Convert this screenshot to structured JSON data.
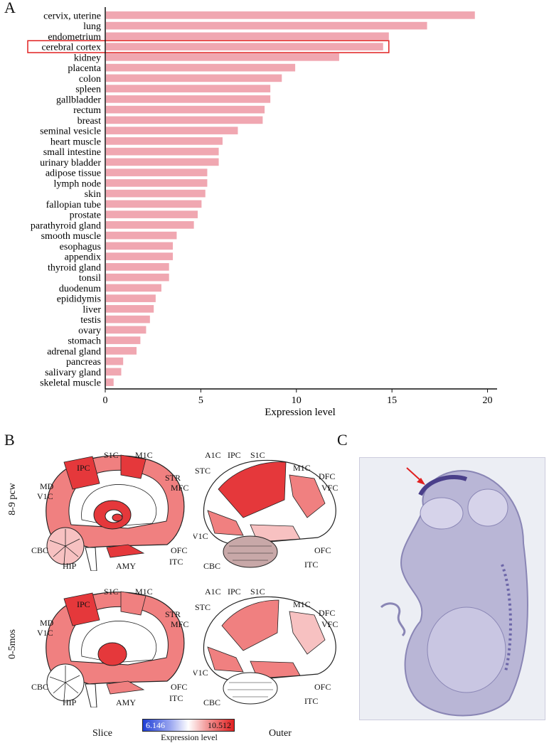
{
  "panels": {
    "a": "A",
    "b": "B",
    "c": "C"
  },
  "chart_data": {
    "type": "bar",
    "orientation": "horizontal",
    "xlabel": "Expression level",
    "xlim": [
      0,
      20.5
    ],
    "xticks": [
      0,
      5,
      10,
      15,
      20
    ],
    "highlight": "cerebral cortex",
    "bar_color": "#f0a7b1",
    "highlight_color": "#e02020",
    "categories": [
      "cervix, uterine",
      "lung",
      "endometrium",
      "cerebral cortex",
      "kidney",
      "placenta",
      "colon",
      "spleen",
      "gallbladder",
      "rectum",
      "breast",
      "seminal vesicle",
      "heart muscle",
      "small intestine",
      "urinary bladder",
      "adipose tissue",
      "lymph node",
      "skin",
      "fallopian tube",
      "prostate",
      "parathyroid gland",
      "smooth muscle",
      "esophagus",
      "appendix",
      "thyroid gland",
      "tonsil",
      "duodenum",
      "epididymis",
      "liver",
      "testis",
      "ovary",
      "stomach",
      "adrenal gland",
      "pancreas",
      "salivary gland",
      "skeletal muscle"
    ],
    "values": [
      19.3,
      16.8,
      14.8,
      14.5,
      12.2,
      9.9,
      9.2,
      8.6,
      8.6,
      8.3,
      8.2,
      6.9,
      6.1,
      5.9,
      5.9,
      5.3,
      5.3,
      5.2,
      5.0,
      4.8,
      4.6,
      3.7,
      3.5,
      3.5,
      3.3,
      3.3,
      2.9,
      2.6,
      2.5,
      2.3,
      2.1,
      1.8,
      1.6,
      0.9,
      0.8,
      0.4
    ]
  },
  "brain": {
    "rows": [
      "8-9 pcw",
      "0-5mos"
    ],
    "slice_regions": [
      "IPC",
      "S1C",
      "M1C",
      "STR",
      "MFC",
      "MD",
      "V1C",
      "OFC",
      "ITC",
      "CBC",
      "HIP",
      "AMY"
    ],
    "outer_regions": [
      "A1C",
      "IPC",
      "S1C",
      "M1C",
      "STC",
      "DFC",
      "VFC",
      "V1C",
      "OFC",
      "CBC",
      "ITC"
    ],
    "view_slice": "Slice",
    "view_outer": "Outer",
    "colorbar": {
      "min": "6.146",
      "max": "10.512",
      "title": "Expression level",
      "low_color": "#1f3fd6",
      "high_color": "#e02020"
    }
  },
  "colors": {
    "strong": "#e5383b",
    "medium": "#f08080",
    "light": "#f7c1c1",
    "none": "#ffffff",
    "outline": "#222222"
  }
}
